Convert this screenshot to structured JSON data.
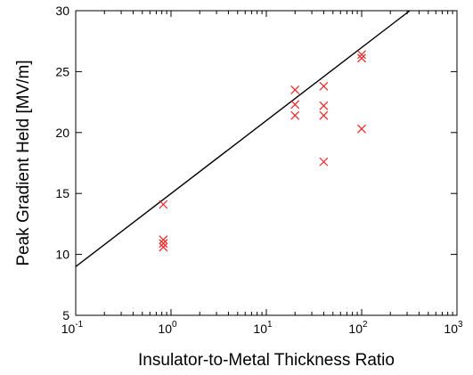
{
  "chart_data": {
    "type": "scatter",
    "title": "",
    "xlabel": "Insulator-to-Metal Thickness Ratio",
    "ylabel": "Peak Gradient Held [MV/m]",
    "xscale": "log",
    "xlim": [
      0.1,
      1000
    ],
    "ylim": [
      5,
      30
    ],
    "grid": false,
    "x_ticks": [
      {
        "value": 0.1,
        "base": "10",
        "exp": "-1"
      },
      {
        "value": 1,
        "base": "10",
        "exp": "0"
      },
      {
        "value": 10,
        "base": "10",
        "exp": "1"
      },
      {
        "value": 100,
        "base": "10",
        "exp": "2"
      },
      {
        "value": 1000,
        "base": "10",
        "exp": "3"
      }
    ],
    "y_ticks": [
      {
        "value": 5,
        "label": "5"
      },
      {
        "value": 10,
        "label": "10"
      },
      {
        "value": 15,
        "label": "15"
      },
      {
        "value": 20,
        "label": "20"
      },
      {
        "value": 25,
        "label": "25"
      },
      {
        "value": 30,
        "label": "30"
      }
    ],
    "series": [
      {
        "marker": "x",
        "color": "#ee2222",
        "points": [
          {
            "x": 0.83,
            "y": 14.1
          },
          {
            "x": 0.83,
            "y": 11.2
          },
          {
            "x": 0.83,
            "y": 10.9
          },
          {
            "x": 0.83,
            "y": 10.6
          },
          {
            "x": 20,
            "y": 23.5
          },
          {
            "x": 20,
            "y": 22.3
          },
          {
            "x": 20,
            "y": 21.4
          },
          {
            "x": 40,
            "y": 23.8
          },
          {
            "x": 40,
            "y": 22.2
          },
          {
            "x": 40,
            "y": 21.4
          },
          {
            "x": 40,
            "y": 17.6
          },
          {
            "x": 100,
            "y": 26.4
          },
          {
            "x": 100,
            "y": 26.1
          },
          {
            "x": 100,
            "y": 20.3
          }
        ]
      },
      {
        "marker": "line",
        "color": "#000000",
        "points": [
          {
            "x": 0.1,
            "y": 9.0
          },
          {
            "x": 320,
            "y": 30.0
          }
        ]
      }
    ]
  }
}
